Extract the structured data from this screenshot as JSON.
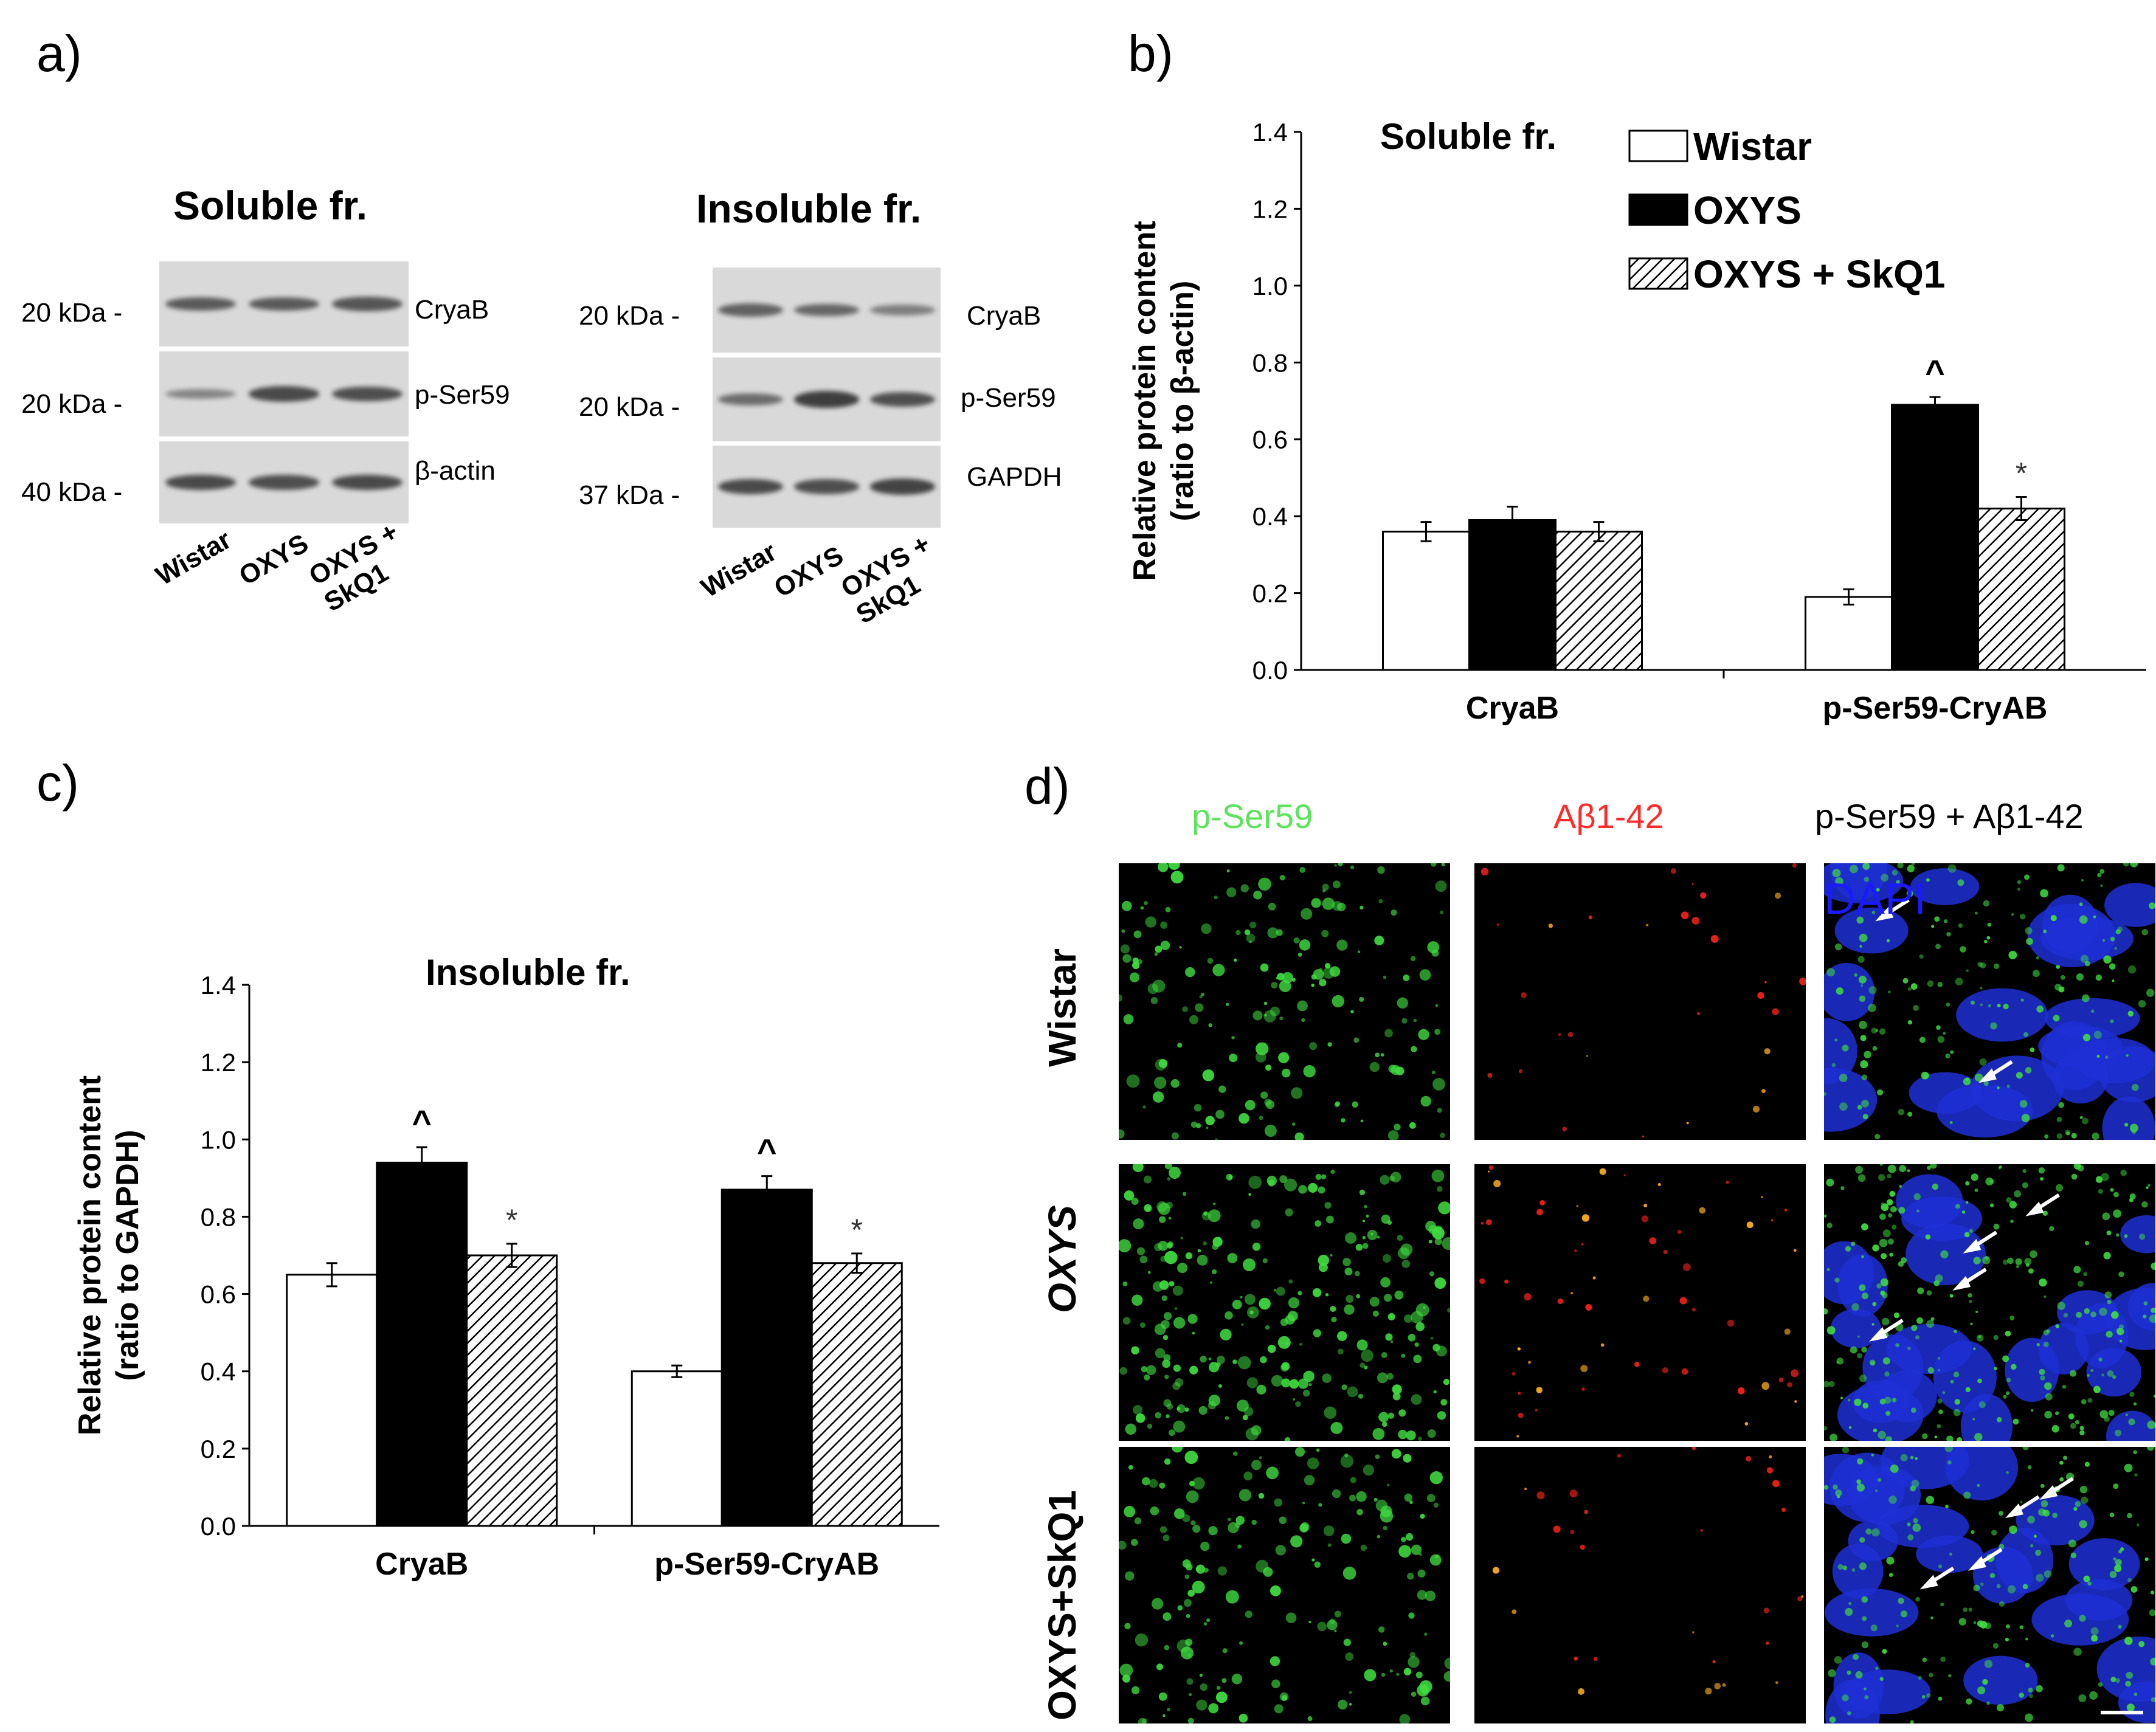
{
  "panel_a": {
    "label": "a)",
    "blots": [
      {
        "title": "Soluble fr.",
        "rows": [
          {
            "kda": "20 kDa -",
            "band": "CryaB",
            "intensities": [
              0.7,
              0.7,
              0.75
            ]
          },
          {
            "kda": "20 kDa -",
            "band": "p-Ser59",
            "intensities": [
              0.35,
              0.85,
              0.8
            ]
          },
          {
            "kda": "40 kDa -",
            "band": "β-actin",
            "intensities": [
              0.85,
              0.8,
              0.85
            ]
          }
        ],
        "lanes": [
          "Wistar",
          "OXYS",
          "OXYS +\nSkQ1"
        ]
      },
      {
        "title": "Insoluble fr.",
        "rows": [
          {
            "kda": "20 kDa -",
            "band": "CryaB",
            "intensities": [
              0.65,
              0.6,
              0.4
            ]
          },
          {
            "kda": "20 kDa -",
            "band": "p-Ser59",
            "intensities": [
              0.55,
              0.95,
              0.8
            ]
          },
          {
            "kda": "37 kDa -",
            "band": "GAPDH",
            "intensities": [
              0.85,
              0.8,
              0.9
            ]
          }
        ],
        "lanes": [
          "Wistar",
          "OXYS",
          "OXYS +\nSkQ1"
        ]
      }
    ]
  },
  "panel_b_label": "b)",
  "panel_c_label": "c)",
  "panel_d": {
    "label": "d)",
    "columns": [
      "p-Ser59",
      "Aβ1-42",
      "p-Ser59  + Aβ1-42"
    ],
    "column_colors": [
      "#5ee35e",
      "#ff2a2a",
      "#000000"
    ],
    "dapi_label": "DAPI",
    "dapi_color": "#1a1aff",
    "rows": [
      "Wistar",
      "OXYS",
      "OXYS+SkQ1"
    ]
  },
  "chart_data": [
    {
      "type": "bar",
      "title": "Soluble fr.",
      "ylabel": "Relative protein content\n(ratio to β-actin)",
      "categories": [
        "CryaB",
        "p-Ser59-CryAB"
      ],
      "ylim": [
        0,
        1.4
      ],
      "yticks": [
        "0.0",
        "0.2",
        "0.4",
        "0.6",
        "0.8",
        "1.0",
        "1.2",
        "1.4"
      ],
      "legend_position": "top-right",
      "series": [
        {
          "name": "Wistar",
          "values": [
            0.36,
            0.19
          ],
          "errors": [
            0.025,
            0.02
          ],
          "annotations": [
            "",
            ""
          ]
        },
        {
          "name": "OXYS",
          "values": [
            0.39,
            0.69
          ],
          "errors": [
            0.035,
            0.02
          ],
          "annotations": [
            "",
            "^"
          ]
        },
        {
          "name": "OXYS + SkQ1",
          "values": [
            0.36,
            0.42
          ],
          "errors": [
            0.025,
            0.03
          ],
          "annotations": [
            "",
            "*"
          ]
        }
      ]
    },
    {
      "type": "bar",
      "title": "Insoluble fr.",
      "ylabel": "Relative protein content\n(ratio to GAPDH)",
      "categories": [
        "CryaB",
        "p-Ser59-CryAB"
      ],
      "ylim": [
        0,
        1.4
      ],
      "yticks": [
        "0.0",
        "0.2",
        "0.4",
        "0.6",
        "0.8",
        "1.0",
        "1.2",
        "1.4"
      ],
      "series": [
        {
          "name": "",
          "values": [
            0.65,
            0.4
          ],
          "errors": [
            0.03,
            0.015
          ],
          "annotations": [
            "",
            ""
          ]
        },
        {
          "name": "",
          "values": [
            0.94,
            0.87
          ],
          "errors": [
            0.04,
            0.035
          ],
          "annotations": [
            "^",
            "^"
          ]
        },
        {
          "name": "",
          "values": [
            0.7,
            0.68
          ],
          "errors": [
            0.03,
            0.025
          ],
          "annotations": [
            "*",
            "*"
          ]
        }
      ]
    }
  ]
}
